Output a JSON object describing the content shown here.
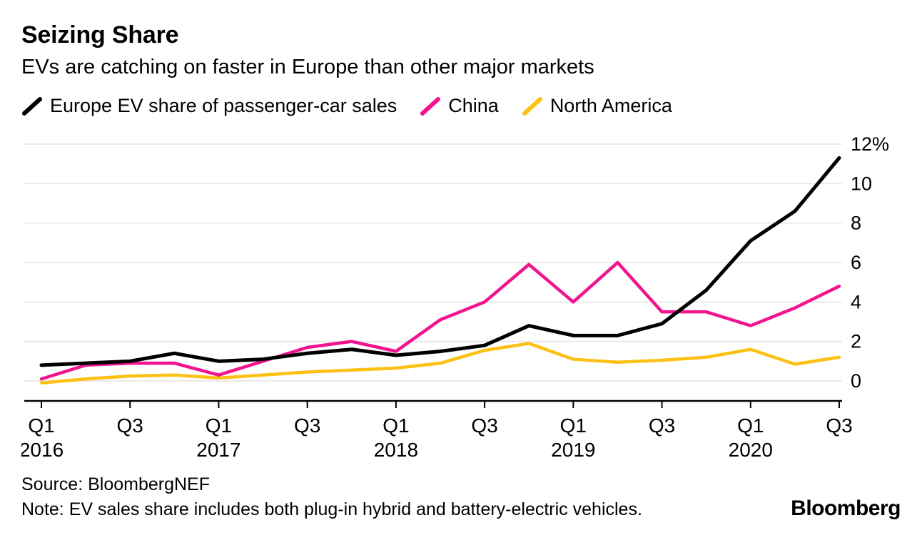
{
  "header": {
    "title": "Seizing Share",
    "subtitle": "EVs are catching on faster in Europe than other major markets"
  },
  "chart_data": {
    "type": "line",
    "title": "Seizing Share",
    "subtitle": "EVs are catching on faster in Europe than other major markets",
    "x": [
      "Q1 2016",
      "Q2 2016",
      "Q3 2016",
      "Q4 2016",
      "Q1 2017",
      "Q2 2017",
      "Q3 2017",
      "Q4 2017",
      "Q1 2018",
      "Q2 2018",
      "Q3 2018",
      "Q4 2018",
      "Q1 2019",
      "Q2 2019",
      "Q3 2019",
      "Q4 2019",
      "Q1 2020",
      "Q2 2020",
      "Q3 2020"
    ],
    "series": [
      {
        "name": "Europe EV share of passenger-car sales",
        "color": "#000000",
        "width": 5,
        "values": [
          0.8,
          0.9,
          1.0,
          1.4,
          1.0,
          1.1,
          1.4,
          1.6,
          1.3,
          1.5,
          1.8,
          2.8,
          2.3,
          2.3,
          2.9,
          4.6,
          7.1,
          8.6,
          11.3
        ]
      },
      {
        "name": "China",
        "color": "#f2138e",
        "width": 4.5,
        "values": [
          0.1,
          0.8,
          0.9,
          0.9,
          0.3,
          1.0,
          1.7,
          2.0,
          1.5,
          3.1,
          4.0,
          5.9,
          4.0,
          6.0,
          3.5,
          3.5,
          2.8,
          3.7,
          4.8
        ]
      },
      {
        "name": "North America",
        "color": "#fdc014",
        "width": 4.5,
        "values": [
          -0.1,
          0.1,
          0.25,
          0.3,
          0.15,
          0.3,
          0.45,
          0.55,
          0.65,
          0.9,
          1.55,
          1.9,
          1.1,
          0.95,
          1.05,
          1.2,
          1.6,
          0.85,
          1.2
        ]
      }
    ],
    "ylim": [
      -1,
      12
    ],
    "yticks": [
      0,
      2,
      4,
      6,
      8,
      10,
      12
    ],
    "ytick_labels": [
      "0",
      "2",
      "4",
      "6",
      "8",
      "10",
      "12%"
    ],
    "xticks": [
      {
        "pos": 0,
        "label": "Q1",
        "year": "2016"
      },
      {
        "pos": 2,
        "label": "Q3",
        "year": ""
      },
      {
        "pos": 4,
        "label": "Q1",
        "year": "2017"
      },
      {
        "pos": 6,
        "label": "Q3",
        "year": ""
      },
      {
        "pos": 8,
        "label": "Q1",
        "year": "2018"
      },
      {
        "pos": 10,
        "label": "Q3",
        "year": ""
      },
      {
        "pos": 12,
        "label": "Q1",
        "year": "2019"
      },
      {
        "pos": 14,
        "label": "Q3",
        "year": ""
      },
      {
        "pos": 16,
        "label": "Q1",
        "year": "2020"
      },
      {
        "pos": 18,
        "label": "Q3",
        "year": ""
      }
    ],
    "grid": true,
    "grid_color": "#e4e4e4",
    "axis_color": "#000000",
    "legend_position": "top"
  },
  "footer": {
    "source": "Source: BloombergNEF",
    "note": "Note: EV sales share includes both plug-in hybrid and battery-electric vehicles.",
    "logo": "Bloomberg"
  }
}
